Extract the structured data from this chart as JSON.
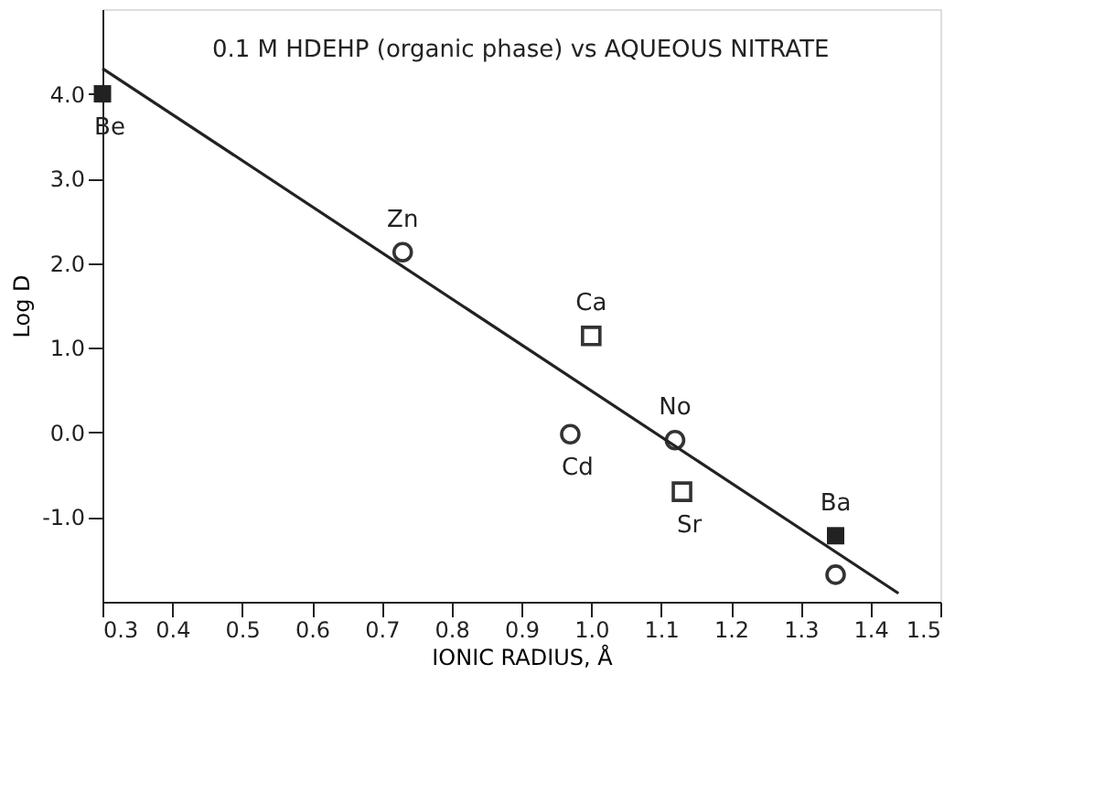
{
  "chart_data": {
    "type": "scatter",
    "title": "0.1 M HDEHP (organic phase) vs AQUEOUS NITRATE",
    "xlabel": "IONIC RADIUS, Å",
    "ylabel": "Log D",
    "series": [
      {
        "marker": "square",
        "color": "#222222",
        "x": [
          0.3,
          1.35
        ],
        "values": [
          4.0,
          -1.22
        ]
      },
      {
        "marker": "square",
        "color": "#333333",
        "x": [
          1.0,
          1.13
        ],
        "values": [
          1.14,
          -0.7
        ]
      },
      {
        "marker": "circle",
        "color": "#333333",
        "x": [
          0.73,
          0.97,
          1.35
        ],
        "values": [
          2.13,
          -0.02,
          -1.68
        ]
      },
      {
        "marker": "circle",
        "color": "#333333",
        "x": [
          1.12
        ],
        "values": [
          -0.09
        ]
      },
      {
        "type": "line",
        "color": "#222222",
        "x": [
          0.3,
          1.44
        ],
        "values": [
          4.3,
          -1.9
        ]
      }
    ],
    "annotations": [
      {
        "text": "Be",
        "x": 0.3,
        "y": 4.0
      },
      {
        "text": "Zn",
        "x": 0.73,
        "y": 2.13
      },
      {
        "text": "Ca",
        "x": 1.0,
        "y": 1.14
      },
      {
        "text": "Cd",
        "x": 0.97,
        "y": -0.02
      },
      {
        "text": "No",
        "x": 1.12,
        "y": -0.09
      },
      {
        "text": "Sr",
        "x": 1.13,
        "y": -0.7
      },
      {
        "text": "Ba",
        "x": 1.35,
        "y": -1.22
      }
    ],
    "xlim": [
      0.3,
      1.5
    ],
    "xticks": [
      0.3,
      0.4,
      0.5,
      0.6,
      0.7,
      0.8,
      0.9,
      {
        "value": 1.0,
        "label": "1.0"
      },
      1.1,
      1.2,
      1.3,
      1.4,
      1.5
    ],
    "ylim": [
      -2.0,
      5.0
    ],
    "yticks": [
      {
        "value": -1.0,
        "label": "-1.0"
      },
      {
        "value": 0.0,
        "label": "0.0"
      },
      {
        "value": 1.0,
        "label": "1.0"
      },
      {
        "value": 2.0,
        "label": "2.0"
      },
      {
        "value": 3.0,
        "label": "3.0"
      },
      {
        "value": 4.0,
        "label": "4.0"
      }
    ],
    "grid": false
  }
}
